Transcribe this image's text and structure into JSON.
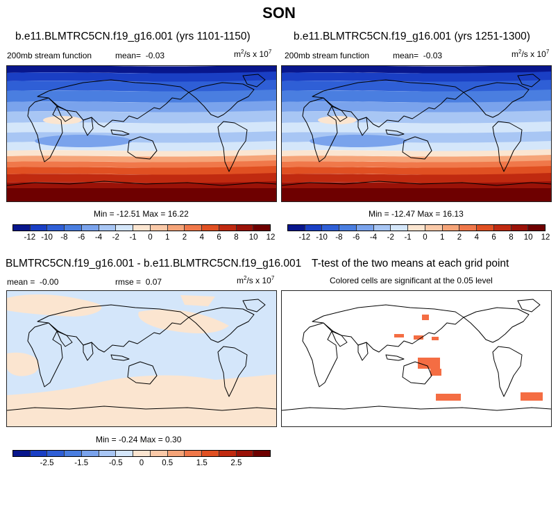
{
  "figure": {
    "season": "SON"
  },
  "panels": {
    "left": {
      "title": "b.e11.BLMTRC5CN.f19_g16.001 (yrs 1101-1150)",
      "field": "200mb stream function",
      "mean_label": "mean=",
      "mean": "-0.03",
      "units_base": "m",
      "units_exp": "2",
      "units_mid": "/s x 10",
      "units_exp2": "7",
      "minmax": "Min = -12.51 Max =  16.22"
    },
    "right": {
      "title": "b.e11.BLMTRC5CN.f19_g16.001 (yrs 1251-1300)",
      "field": "200mb stream function",
      "mean_label": "mean=",
      "mean": "-0.03",
      "units_base": "m",
      "units_exp": "2",
      "units_mid": "/s x 10",
      "units_exp2": "7",
      "minmax": "Min = -12.47 Max =  16.13"
    },
    "diff": {
      "title": "BLMTRC5CN.f19_g16.001 - b.e11.BLMTRC5CN.f19_g16.001",
      "mean_label": "mean =",
      "mean": "-0.00",
      "rmse_label": "rmse =",
      "rmse": "0.07",
      "units_base": "m",
      "units_exp": "2",
      "units_mid": "/s x 10",
      "units_exp2": "7",
      "minmax": "Min =  -0.24 Max =  0.30"
    },
    "ttest": {
      "title": "T-test of the two means at each grid point",
      "subtitle": "Colored cells are significant at the 0.05 level",
      "significant_color": "#f46d43"
    }
  },
  "colorbar_main": {
    "colors": [
      "#08168c",
      "#1a3fc4",
      "#2f5fd6",
      "#4a7ee0",
      "#7aa3ec",
      "#a8c6f4",
      "#d4e6fa",
      "#fbe5d0",
      "#fac9a8",
      "#f5a478",
      "#f0784a",
      "#e05022",
      "#c02a10",
      "#9a1208",
      "#6e0000"
    ],
    "ticks": [
      "-12",
      "-10",
      "-8",
      "-6",
      "-4",
      "-2",
      "-1",
      "0",
      "1",
      "2",
      "4",
      "6",
      "8",
      "10",
      "12"
    ]
  },
  "colorbar_diff": {
    "colors": [
      "#08168c",
      "#1a3fc4",
      "#2f5fd6",
      "#4a7ee0",
      "#7aa3ec",
      "#a8c6f4",
      "#d4e6fa",
      "#fbe5d0",
      "#fac9a8",
      "#f5a478",
      "#f0784a",
      "#e05022",
      "#c02a10",
      "#9a1208",
      "#6e0000"
    ],
    "ticks": [
      "-2.5",
      "-1.5",
      "-0.5",
      "0",
      "0.5",
      "1.5",
      "2.5"
    ]
  }
}
